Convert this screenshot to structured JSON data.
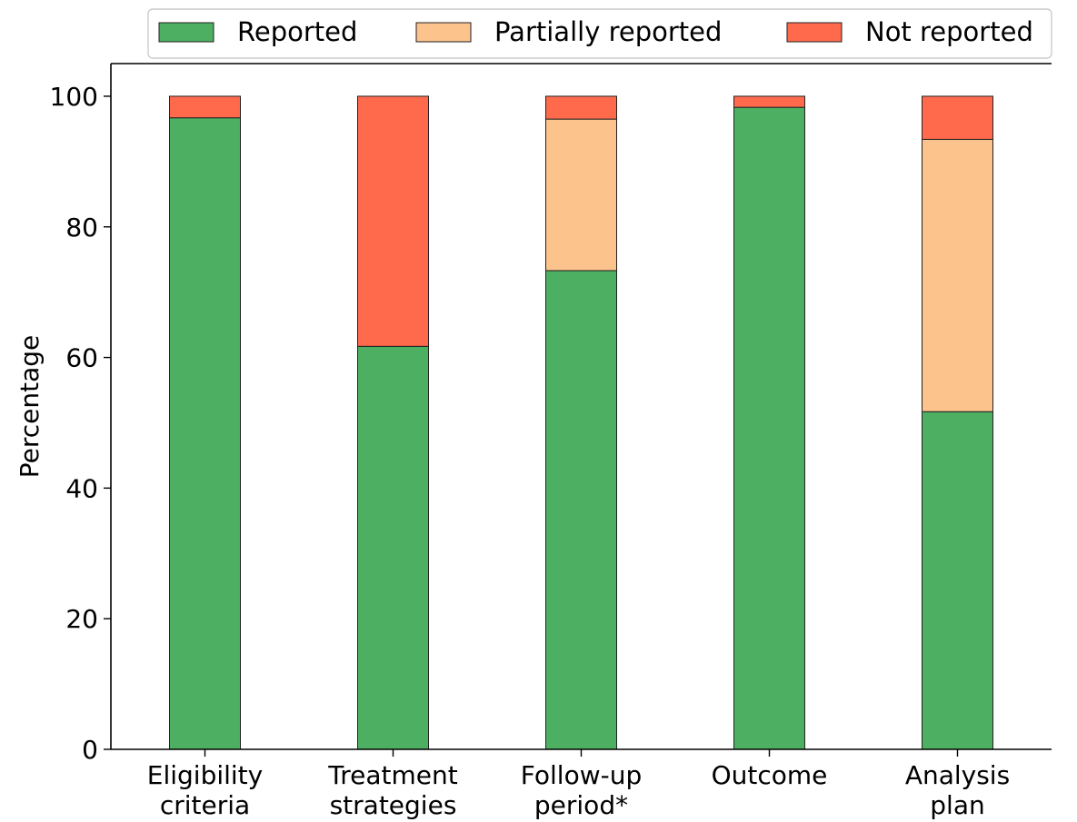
{
  "chart_data": {
    "type": "bar",
    "stacked": true,
    "categories": [
      [
        "Eligibility",
        "criteria"
      ],
      [
        "Treatment",
        "strategies"
      ],
      [
        "Follow-up",
        "period*"
      ],
      [
        "Outcome"
      ],
      [
        "Analysis",
        "plan"
      ]
    ],
    "series": [
      {
        "name": "Reported",
        "color": "#4daf62",
        "values": [
          96.7,
          61.7,
          73.3,
          98.3,
          51.7
        ]
      },
      {
        "name": "Partially reported",
        "color": "#fcc38d",
        "values": [
          0,
          0,
          23.2,
          0,
          41.7
        ]
      },
      {
        "name": "Not reported",
        "color": "#ff6a4d",
        "values": [
          3.3,
          38.3,
          3.5,
          1.7,
          6.6
        ]
      }
    ],
    "ylabel": "Percentage",
    "xlabel": "",
    "ylim": [
      0,
      105
    ],
    "yticks": [
      0,
      20,
      40,
      60,
      80,
      100
    ],
    "grid": false,
    "legend_position": "top"
  }
}
